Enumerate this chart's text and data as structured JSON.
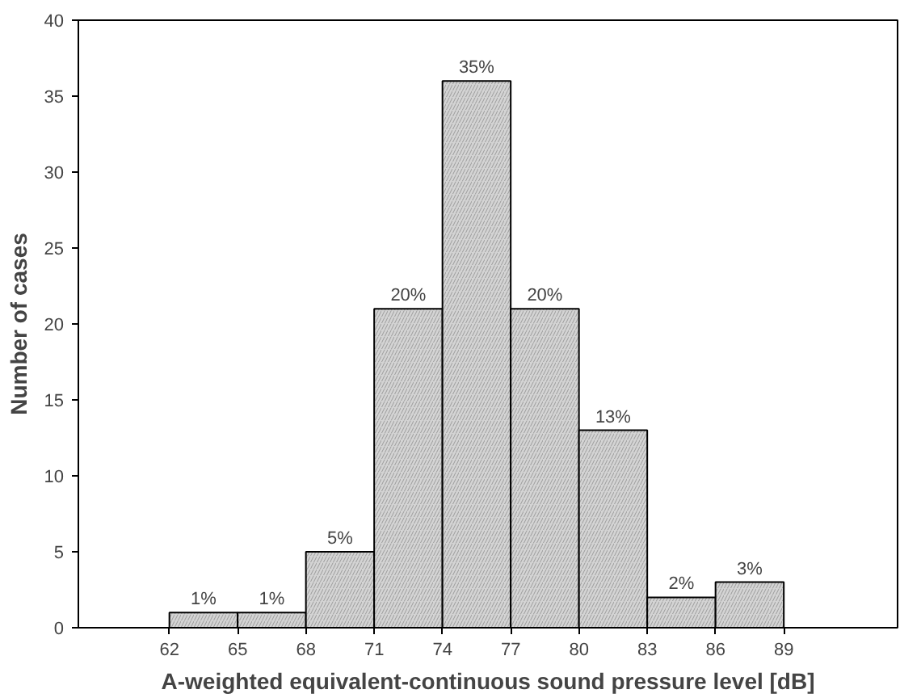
{
  "chart_data": {
    "type": "histogram",
    "xlabel": "A-weighted equivalent-continuous sound pressure level [dB]",
    "ylabel": "Number of cases",
    "bins": [
      62,
      65,
      68,
      71,
      74,
      77,
      80,
      83,
      86,
      89
    ],
    "values": [
      1,
      1,
      5,
      21,
      36,
      21,
      13,
      2,
      3
    ],
    "annotations": [
      {
        "text": "1%",
        "x": 63.5,
        "y": 1
      },
      {
        "text": "1%",
        "x": 66.5,
        "y": 1
      },
      {
        "text": "5%",
        "x": 69.5,
        "y": 5
      },
      {
        "text": "20%",
        "x": 72.5,
        "y": 21
      },
      {
        "text": "35%",
        "x": 75.5,
        "y": 36
      },
      {
        "text": "20%",
        "x": 78.5,
        "y": 21
      },
      {
        "text": "13%",
        "x": 81.5,
        "y": 13
      },
      {
        "text": "2%",
        "x": 84.5,
        "y": 2
      },
      {
        "text": "3%",
        "x": 87.5,
        "y": 3
      }
    ],
    "color": "#d4d4d4",
    "xlim": [
      58,
      94
    ],
    "xticks": [
      62,
      65,
      68,
      71,
      74,
      77,
      80,
      83,
      86,
      89
    ],
    "ylim": [
      0,
      40
    ],
    "yticks": [
      0,
      5,
      10,
      15,
      20,
      25,
      30,
      35,
      40
    ],
    "grid": false
  }
}
